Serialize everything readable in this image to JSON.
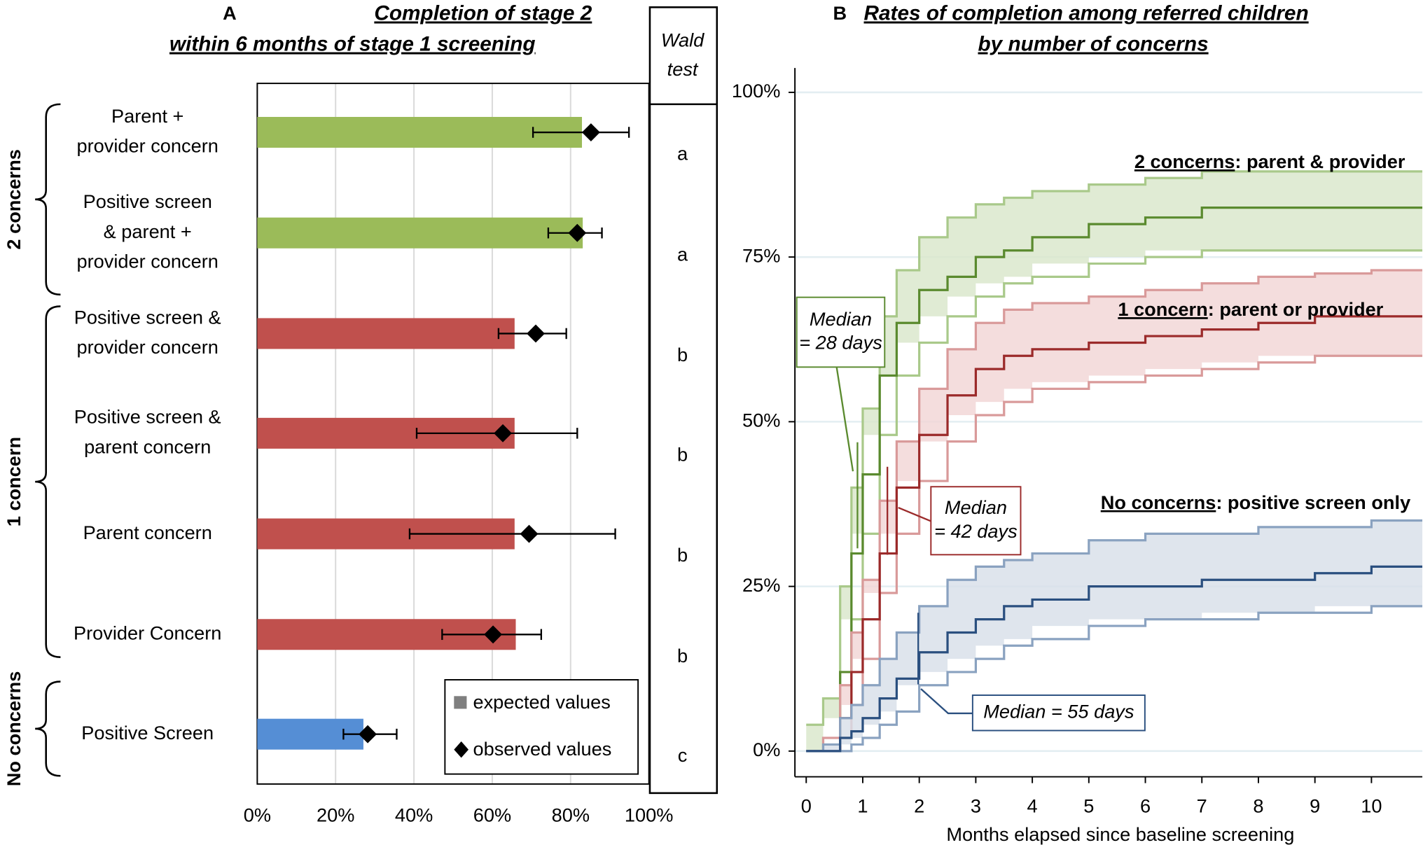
{
  "chart_data": [
    {
      "type": "bar",
      "panel": "A",
      "title_lines": [
        "Completion of stage 2",
        "within 6 months of stage 1 screening"
      ],
      "categories": [
        [
          "Parent +",
          "provider concern"
        ],
        [
          "Positive screen",
          "& parent +",
          "provider concern"
        ],
        [
          "Positive screen &",
          "provider concern"
        ],
        [
          "Positive screen &",
          "parent concern"
        ],
        [
          "Parent concern"
        ],
        [
          "Provider Concern"
        ],
        [
          "Positive Screen"
        ]
      ],
      "colors": [
        "#9bbb59",
        "#9bbb59",
        "#c0504d",
        "#c0504d",
        "#c0504d",
        "#c0504d",
        "#558ed5"
      ],
      "series": [
        {
          "name": "expected values",
          "color": "#7f7f7f",
          "values": [
            82.9,
            83.1,
            65.7,
            65.7,
            65.7,
            66.0,
            27.1
          ]
        },
        {
          "name": "observed values",
          "color": "#000000",
          "values": [
            85.2,
            81.7,
            71.1,
            62.7,
            69.4,
            60.2,
            28.2
          ],
          "error_low": [
            70.4,
            74.3,
            61.6,
            40.7,
            38.9,
            47.2,
            22.0
          ],
          "error_high": [
            94.9,
            88.0,
            78.9,
            81.7,
            91.4,
            72.5,
            35.6
          ]
        }
      ],
      "groups": [
        {
          "label": "2 concerns",
          "first": 0,
          "last": 1
        },
        {
          "label": "1 concern",
          "first": 2,
          "last": 5
        },
        {
          "label": "No concerns",
          "first": 6,
          "last": 6
        }
      ],
      "wald_header": [
        "Wald",
        "test"
      ],
      "wald": [
        "a",
        "a",
        "b",
        "b",
        "b",
        "b",
        "c"
      ],
      "xlim": [
        0,
        100
      ],
      "xticks": [
        {
          "value": 0,
          "label": "0%"
        },
        {
          "value": 20,
          "label": "20%"
        },
        {
          "value": 40,
          "label": "40%"
        },
        {
          "value": 60,
          "label": "60%"
        },
        {
          "value": 80,
          "label": "80%"
        },
        {
          "value": 100,
          "label": "100%"
        }
      ],
      "grid": true
    },
    {
      "type": "step",
      "panel": "B",
      "title_lines": [
        "Rates of completion among referred children",
        "by number of concerns"
      ],
      "x_label": "Months elapsed since baseline screening",
      "x": [
        0,
        0.3,
        0.6,
        0.8,
        1,
        1.3,
        1.6,
        2,
        2.5,
        3,
        3.5,
        4,
        5,
        6,
        7,
        8,
        9,
        10,
        10.9
      ],
      "series": [
        {
          "name": "2 concerns",
          "description": ": parent & provider",
          "color": "#5a8a2e",
          "band_color": "#d8e6c9",
          "edge_color": "#a9c98a",
          "values": [
            0,
            0,
            12,
            30,
            42,
            57,
            65,
            70,
            72,
            75,
            76,
            78,
            80,
            81,
            82.5,
            82.5,
            82.5,
            82.5,
            82.5
          ],
          "upper": [
            4,
            8,
            25,
            40,
            52,
            66,
            73,
            78,
            81,
            83,
            84,
            85,
            86,
            87,
            88,
            88,
            88,
            88,
            88
          ],
          "lower": [
            0,
            0,
            5,
            20,
            33,
            48,
            57,
            62,
            66,
            69,
            71,
            72,
            74,
            75,
            76,
            76,
            76,
            76,
            76
          ]
        },
        {
          "name": "1 concern",
          "description": ": parent or provider",
          "color": "#9b2a2a",
          "band_color": "#f1d4d4",
          "edge_color": "#d99a9a",
          "values": [
            0,
            0,
            5,
            12,
            20,
            30,
            40,
            48,
            54,
            58,
            60,
            61,
            62,
            63,
            64,
            65,
            66,
            66,
            66
          ],
          "upper": [
            0,
            2,
            10,
            18,
            26,
            38,
            47,
            55,
            61,
            65,
            67,
            68,
            69,
            70,
            71,
            72,
            72.5,
            73,
            73
          ],
          "lower": [
            0,
            0,
            2,
            7,
            14,
            24,
            33,
            41,
            47,
            51,
            53,
            55,
            56,
            57,
            58,
            59,
            60,
            60,
            60
          ]
        },
        {
          "name": "No concerns",
          "description": ": positive screen only",
          "color": "#2a4f7f",
          "band_color": "#d7dfe9",
          "edge_color": "#8aa2c0",
          "values": [
            0,
            0,
            2,
            3,
            5,
            8,
            11,
            15,
            18,
            20,
            22,
            23,
            25,
            25,
            26,
            26,
            27,
            28,
            28
          ],
          "upper": [
            0,
            1,
            5,
            7,
            10,
            14,
            18,
            22,
            26,
            28,
            29,
            30,
            32,
            33,
            33,
            34,
            34,
            35,
            35
          ],
          "lower": [
            0,
            0,
            0,
            1,
            2,
            4,
            6,
            10,
            12,
            14,
            16,
            17,
            19,
            20,
            20,
            21,
            21,
            22,
            22
          ]
        }
      ],
      "annotations": [
        {
          "lines": [
            "Median",
            "= 28 days"
          ]
        },
        {
          "lines": [
            "Median",
            "= 42 days"
          ]
        },
        {
          "lines": [
            "Median = 55 days"
          ]
        }
      ],
      "xlim": [
        -0.2,
        10.9
      ],
      "ylim": [
        -3.9,
        103.7
      ],
      "xticks": [
        0,
        1,
        2,
        3,
        4,
        5,
        6,
        7,
        8,
        9,
        10
      ],
      "yticks": [
        {
          "value": 0,
          "label": "0%"
        },
        {
          "value": 25,
          "label": "25%"
        },
        {
          "value": 50,
          "label": "50%"
        },
        {
          "value": 75,
          "label": "75%"
        },
        {
          "value": 100,
          "label": "100%"
        }
      ],
      "grid": true
    }
  ]
}
